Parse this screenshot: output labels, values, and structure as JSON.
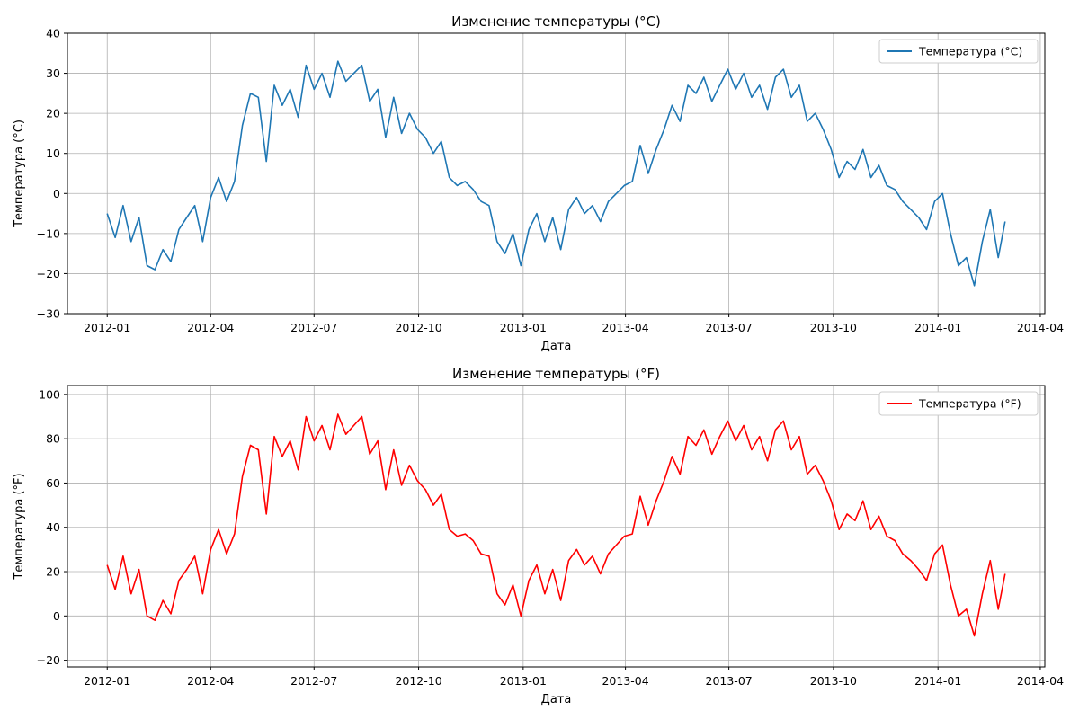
{
  "chart_data": [
    {
      "type": "line",
      "title": "Изменение температуры (°C)",
      "xlabel": "Дата",
      "ylabel": "Температура (°C)",
      "xlim": [
        "2011-11-27",
        "2014-04-05"
      ],
      "ylim": [
        -30,
        40
      ],
      "xticks": [
        "2012-01",
        "2012-04",
        "2012-07",
        "2012-10",
        "2013-01",
        "2013-04",
        "2013-07",
        "2013-10",
        "2014-01",
        "2014-04"
      ],
      "yticks": [
        -30,
        -20,
        -10,
        0,
        10,
        20,
        30,
        40
      ],
      "grid": true,
      "legend": "top-right",
      "series": [
        {
          "name": "Температура (°C)",
          "color": "#1f77b4",
          "x": [
            "2012-01-01",
            "2012-01-08",
            "2012-01-15",
            "2012-01-22",
            "2012-01-29",
            "2012-02-05",
            "2012-02-12",
            "2012-02-19",
            "2012-02-26",
            "2012-03-04",
            "2012-03-11",
            "2012-03-18",
            "2012-03-25",
            "2012-04-01",
            "2012-04-08",
            "2012-04-15",
            "2012-04-22",
            "2012-04-29",
            "2012-05-06",
            "2012-05-13",
            "2012-05-20",
            "2012-05-27",
            "2012-06-03",
            "2012-06-10",
            "2012-06-17",
            "2012-06-24",
            "2012-07-01",
            "2012-07-08",
            "2012-07-15",
            "2012-07-22",
            "2012-07-29",
            "2012-08-05",
            "2012-08-12",
            "2012-08-19",
            "2012-08-26",
            "2012-09-02",
            "2012-09-09",
            "2012-09-16",
            "2012-09-23",
            "2012-09-30",
            "2012-10-07",
            "2012-10-14",
            "2012-10-21",
            "2012-10-28",
            "2012-11-04",
            "2012-11-11",
            "2012-11-18",
            "2012-11-25",
            "2012-12-02",
            "2012-12-09",
            "2012-12-16",
            "2012-12-23",
            "2012-12-30",
            "2013-01-06",
            "2013-01-13",
            "2013-01-20",
            "2013-01-27",
            "2013-02-03",
            "2013-02-10",
            "2013-02-17",
            "2013-02-24",
            "2013-03-03",
            "2013-03-10",
            "2013-03-17",
            "2013-03-24",
            "2013-03-31",
            "2013-04-07",
            "2013-04-14",
            "2013-04-21",
            "2013-04-28",
            "2013-05-05",
            "2013-05-12",
            "2013-05-19",
            "2013-05-26",
            "2013-06-02",
            "2013-06-09",
            "2013-06-16",
            "2013-06-23",
            "2013-06-30",
            "2013-07-07",
            "2013-07-14",
            "2013-07-21",
            "2013-07-28",
            "2013-08-04",
            "2013-08-11",
            "2013-08-18",
            "2013-08-25",
            "2013-09-01",
            "2013-09-08",
            "2013-09-15",
            "2013-09-22",
            "2013-09-29",
            "2013-10-06",
            "2013-10-13",
            "2013-10-20",
            "2013-10-27",
            "2013-11-03",
            "2013-11-10",
            "2013-11-17",
            "2013-11-24",
            "2013-12-01",
            "2013-12-08",
            "2013-12-15",
            "2013-12-22",
            "2013-12-29",
            "2014-01-05",
            "2014-01-12",
            "2014-01-19",
            "2014-01-26",
            "2014-02-02",
            "2014-02-09",
            "2014-02-16",
            "2014-02-23",
            "2014-03-01"
          ],
          "values": [
            -5,
            -11,
            -3,
            -12,
            -6,
            -18,
            -19,
            -14,
            -17,
            -9,
            -6,
            -3,
            -12,
            -1,
            4,
            -2,
            3,
            17,
            25,
            24,
            8,
            27,
            22,
            26,
            19,
            32,
            26,
            30,
            24,
            33,
            28,
            30,
            32,
            23,
            26,
            14,
            24,
            15,
            20,
            16,
            14,
            10,
            13,
            4,
            2,
            3,
            1,
            -2,
            -3,
            -12,
            -15,
            -10,
            -18,
            -9,
            -5,
            -12,
            -6,
            -14,
            -4,
            -1,
            -5,
            -3,
            -7,
            -2,
            0,
            2,
            3,
            12,
            5,
            11,
            16,
            22,
            18,
            27,
            25,
            29,
            23,
            27,
            31,
            26,
            30,
            24,
            27,
            21,
            29,
            31,
            24,
            27,
            18,
            20,
            16,
            11,
            4,
            8,
            6,
            11,
            4,
            7,
            2,
            1,
            -2,
            -4,
            -6,
            -9,
            -2,
            0,
            -10,
            -18,
            -16,
            -23,
            -12,
            -4,
            -16,
            -7
          ]
        }
      ]
    },
    {
      "type": "line",
      "title": "Изменение температуры (°F)",
      "xlabel": "Дата",
      "ylabel": "Температура (°F)",
      "xlim": [
        "2011-11-27",
        "2014-04-05"
      ],
      "ylim": [
        -23,
        104
      ],
      "xticks": [
        "2012-01",
        "2012-04",
        "2012-07",
        "2012-10",
        "2013-01",
        "2013-04",
        "2013-07",
        "2013-10",
        "2014-01",
        "2014-04"
      ],
      "yticks": [
        -20,
        0,
        20,
        40,
        60,
        80,
        100
      ],
      "grid": true,
      "legend": "top-right",
      "series": [
        {
          "name": "Температура (°F)",
          "color": "#ff0000",
          "x": [
            "2012-01-01",
            "2012-01-08",
            "2012-01-15",
            "2012-01-22",
            "2012-01-29",
            "2012-02-05",
            "2012-02-12",
            "2012-02-19",
            "2012-02-26",
            "2012-03-04",
            "2012-03-11",
            "2012-03-18",
            "2012-03-25",
            "2012-04-01",
            "2012-04-08",
            "2012-04-15",
            "2012-04-22",
            "2012-04-29",
            "2012-05-06",
            "2012-05-13",
            "2012-05-20",
            "2012-05-27",
            "2012-06-03",
            "2012-06-10",
            "2012-06-17",
            "2012-06-24",
            "2012-07-01",
            "2012-07-08",
            "2012-07-15",
            "2012-07-22",
            "2012-07-29",
            "2012-08-05",
            "2012-08-12",
            "2012-08-19",
            "2012-08-26",
            "2012-09-02",
            "2012-09-09",
            "2012-09-16",
            "2012-09-23",
            "2012-09-30",
            "2012-10-07",
            "2012-10-14",
            "2012-10-21",
            "2012-10-28",
            "2012-11-04",
            "2012-11-11",
            "2012-11-18",
            "2012-11-25",
            "2012-12-02",
            "2012-12-09",
            "2012-12-16",
            "2012-12-23",
            "2012-12-30",
            "2013-01-06",
            "2013-01-13",
            "2013-01-20",
            "2013-01-27",
            "2013-02-03",
            "2013-02-10",
            "2013-02-17",
            "2013-02-24",
            "2013-03-03",
            "2013-03-10",
            "2013-03-17",
            "2013-03-24",
            "2013-03-31",
            "2013-04-07",
            "2013-04-14",
            "2013-04-21",
            "2013-04-28",
            "2013-05-05",
            "2013-05-12",
            "2013-05-19",
            "2013-05-26",
            "2013-06-02",
            "2013-06-09",
            "2013-06-16",
            "2013-06-23",
            "2013-06-30",
            "2013-07-07",
            "2013-07-14",
            "2013-07-21",
            "2013-07-28",
            "2013-08-04",
            "2013-08-11",
            "2013-08-18",
            "2013-08-25",
            "2013-09-01",
            "2013-09-08",
            "2013-09-15",
            "2013-09-22",
            "2013-09-29",
            "2013-10-06",
            "2013-10-13",
            "2013-10-20",
            "2013-10-27",
            "2013-11-03",
            "2013-11-10",
            "2013-11-17",
            "2013-11-24",
            "2013-12-01",
            "2013-12-08",
            "2013-12-15",
            "2013-12-22",
            "2013-12-29",
            "2014-01-05",
            "2014-01-12",
            "2014-01-19",
            "2014-01-26",
            "2014-02-02",
            "2014-02-09",
            "2014-02-16",
            "2014-02-23",
            "2014-03-01"
          ],
          "values": [
            23,
            12,
            27,
            10,
            21,
            0,
            -2,
            7,
            1,
            16,
            21,
            27,
            10,
            30,
            39,
            28,
            37,
            63,
            77,
            75,
            46,
            81,
            72,
            79,
            66,
            90,
            79,
            86,
            75,
            91,
            82,
            86,
            90,
            73,
            79,
            57,
            75,
            59,
            68,
            61,
            57,
            50,
            55,
            39,
            36,
            37,
            34,
            28,
            27,
            10,
            5,
            14,
            0,
            16,
            23,
            10,
            21,
            7,
            25,
            30,
            23,
            27,
            19,
            28,
            32,
            36,
            37,
            54,
            41,
            52,
            61,
            72,
            64,
            81,
            77,
            84,
            73,
            81,
            88,
            79,
            86,
            75,
            81,
            70,
            84,
            88,
            75,
            81,
            64,
            68,
            61,
            52,
            39,
            46,
            43,
            52,
            39,
            45,
            36,
            34,
            28,
            25,
            21,
            16,
            28,
            32,
            14,
            0,
            3,
            -9,
            10,
            25,
            3,
            19
          ]
        }
      ]
    }
  ]
}
